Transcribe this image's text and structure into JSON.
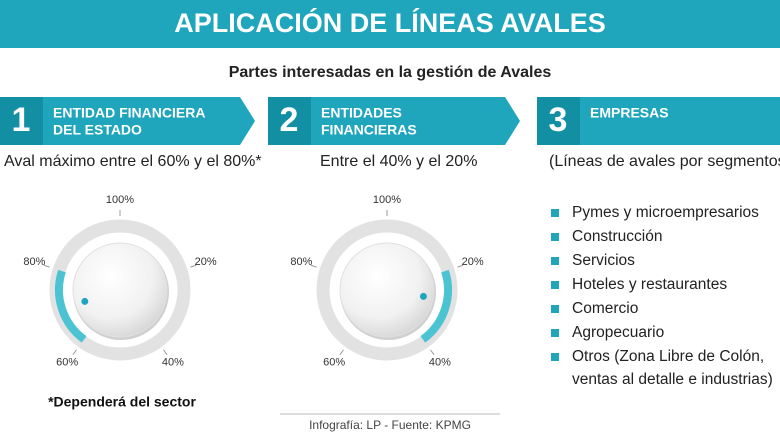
{
  "header": {
    "title": "APLICACIÓN DE LÍNEAS AVALES",
    "subtitle": "Partes interesadas en la  gestión de Avales"
  },
  "steps": [
    {
      "number": "1",
      "label": [
        "ENTIDAD FINANCIERA",
        "DEL ESTADO"
      ],
      "caption": "Aval máximo entre el 60% y el 80%*",
      "dial": [
        "100%",
        "20%",
        "40%",
        "60%",
        "80%"
      ]
    },
    {
      "number": "2",
      "label": [
        "ENTIDADES",
        "FINANCIERAS"
      ],
      "caption": "Entre el 40% y el 20%",
      "dial": [
        "100%",
        "20%",
        "40%",
        "60%",
        "80%"
      ]
    },
    {
      "number": "3",
      "label": [
        "EMPRESAS"
      ],
      "caption": "(Líneas de avales por segmentos)"
    }
  ],
  "segments": [
    "Pymes y microempresarios",
    "Construcción",
    "Servicios",
    "Hoteles y restaurantes",
    "Comercio",
    "Agropecuario",
    [
      "Otros (Zona Libre de Colón,",
      "ventas al detalle e industrias)"
    ]
  ],
  "footnote": "*Dependerá del sector",
  "footer": "Infografía: LP - Fuente: KPMG"
}
